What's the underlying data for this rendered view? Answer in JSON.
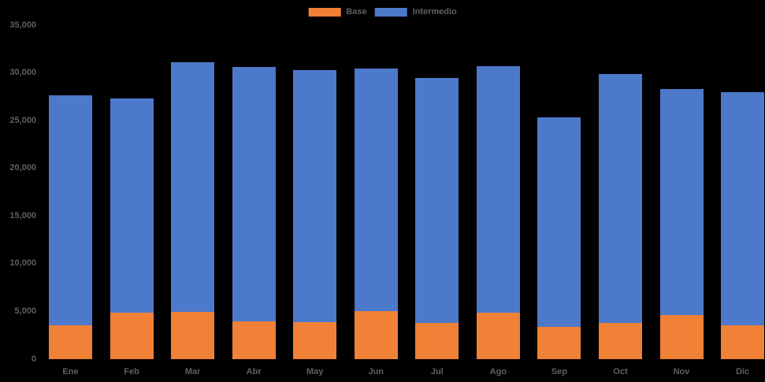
{
  "chart_data": {
    "type": "bar",
    "stacked": true,
    "title": "",
    "xlabel": "",
    "ylabel": "",
    "categories": [
      "Ene",
      "Feb",
      "Mar",
      "Abr",
      "May",
      "Jun",
      "Jul",
      "Ago",
      "Sep",
      "Oct",
      "Nov",
      "Dic"
    ],
    "series": [
      {
        "name": "Base",
        "color": "#F08136",
        "values": [
          3550,
          4850,
          4950,
          4000,
          3850,
          5000,
          3800,
          4900,
          3350,
          3800,
          4650,
          3550
        ]
      },
      {
        "name": "Intermedio",
        "color": "#4D79CB",
        "values": [
          24100,
          22450,
          26150,
          26650,
          26450,
          25450,
          25650,
          25800,
          22000,
          26100,
          23650,
          24400
        ]
      }
    ],
    "totals": [
      27650,
      27300,
      31100,
      30650,
      30300,
      30450,
      29450,
      30700,
      25350,
      29900,
      28300,
      27950
    ],
    "ylim": [
      0,
      35000
    ],
    "ytick_step": 5000,
    "ytick_labels": [
      "0",
      "5,000",
      "10,000",
      "15,000",
      "20,000",
      "25,000",
      "30,000",
      "35,000"
    ],
    "legend_position": "top-center",
    "grid": false,
    "colors": {
      "background": "#000000",
      "label_text": "#5f5f5f"
    }
  }
}
